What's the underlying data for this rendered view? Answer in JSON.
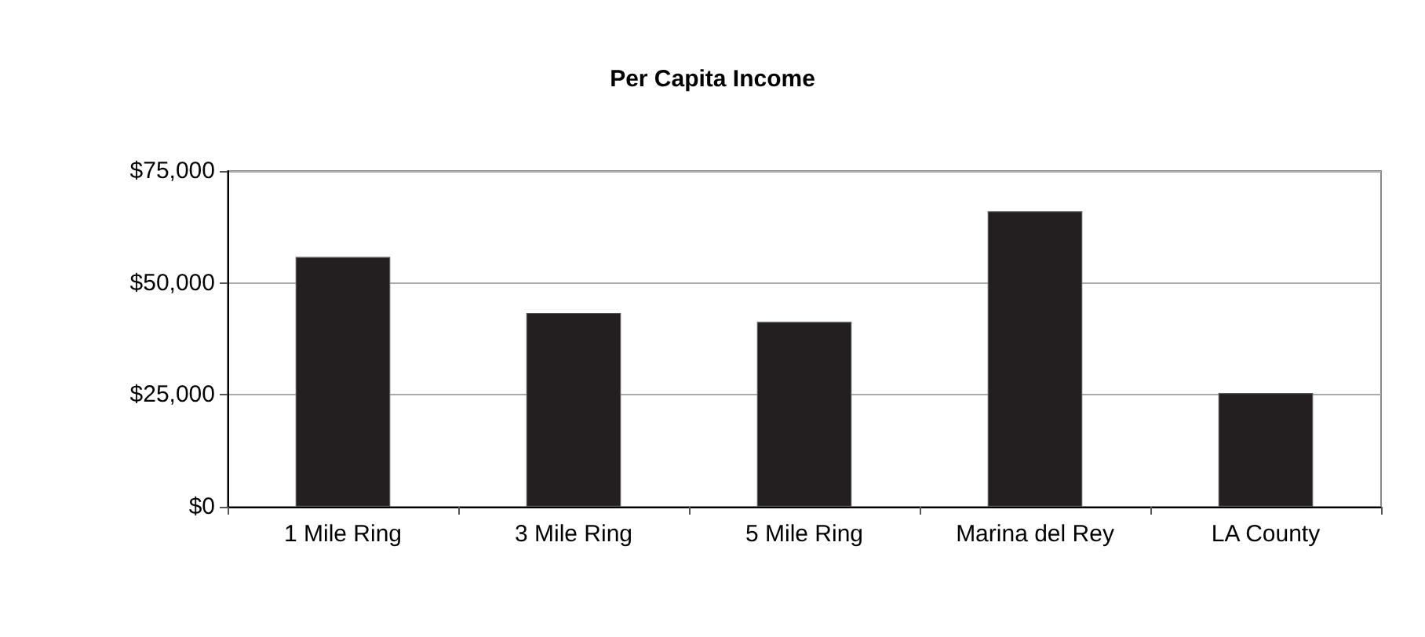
{
  "chart_data": {
    "type": "bar",
    "title": "Per Capita Income",
    "categories": [
      "1 Mile Ring",
      "3 Mile Ring",
      "5 Mile Ring",
      "Marina del Rey",
      "LA County"
    ],
    "values": [
      55800,
      43300,
      41300,
      66000,
      25400
    ],
    "color": "#231f20",
    "ylim": [
      0,
      75000
    ],
    "yticks": [
      {
        "value": 0,
        "label": "$0"
      },
      {
        "value": 25000,
        "label": "$25,000"
      },
      {
        "value": 50000,
        "label": "$50,000"
      },
      {
        "value": 75000,
        "label": "$75,000"
      }
    ],
    "grid": "y"
  }
}
